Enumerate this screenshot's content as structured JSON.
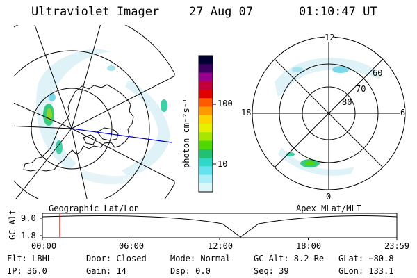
{
  "header": {
    "instrument": "Ultraviolet Imager",
    "date": "27 Aug 07",
    "time": "01:10:47 UT"
  },
  "colorbar": {
    "label": "photon cm⁻²s⁻¹",
    "ticks": [
      "100",
      "10"
    ],
    "colors": [
      "#000033",
      "#3a0060",
      "#9a0090",
      "#c4003a",
      "#e00000",
      "#ff5a00",
      "#ff9a00",
      "#ffd400",
      "#e8f000",
      "#a6e600",
      "#50d800",
      "#22c070",
      "#30d6c8",
      "#66e2ee",
      "#a8eef6",
      "#dcf6fa"
    ]
  },
  "left_panel": {
    "caption": "Geographic Lat/Lon",
    "rings": [],
    "icons": [
      "coastline-outline"
    ]
  },
  "right_panel": {
    "caption": "Apex MLat/MLT",
    "mlt_labels": {
      "top": "12",
      "bottom": "0",
      "left": "18",
      "right": "6"
    },
    "lat_labels": [
      "60",
      "70",
      "80"
    ]
  },
  "timeline": {
    "ylabel": "GC Alt",
    "yticks": [
      "9.0",
      "1.8"
    ],
    "xticks": [
      "00:00",
      "06:00",
      "12:00",
      "18:00",
      "23:59"
    ],
    "marker_fraction": 0.049
  },
  "status": {
    "flt": "Flt: LBHL",
    "ip": "IP: 36.0",
    "door": "Door: Closed",
    "gain": "Gain: 14",
    "mode": "Mode: Normal",
    "dsp": "Dsp:   0.0",
    "gcalt": "GC Alt: 8.2 Re",
    "seq": "Seq: 39",
    "glat": "GLat: −80.8",
    "glon": "GLon: 133.1"
  }
}
